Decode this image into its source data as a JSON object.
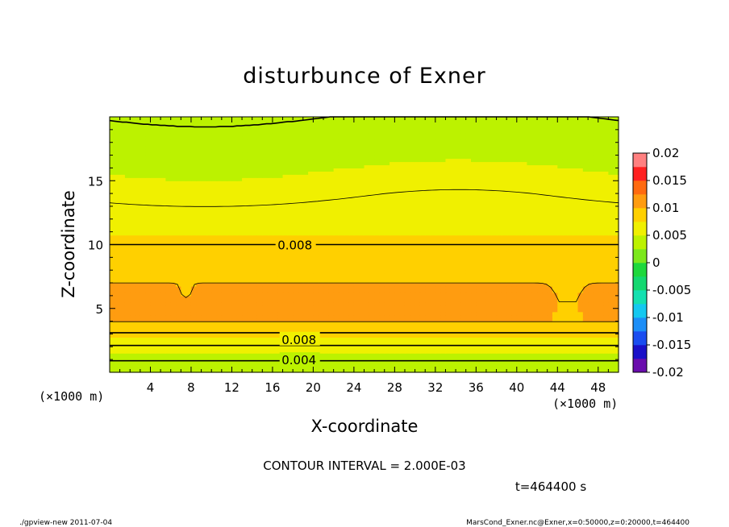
{
  "chart_data": {
    "type": "heatmap",
    "title": "disturbunce of Exner",
    "xlabel": "X-coordinate",
    "ylabel": "Z-coordinate",
    "x_unit": "(×1000 m)",
    "y_unit": "(×1000 m)",
    "xlim": [
      0,
      50
    ],
    "ylim": [
      0,
      20
    ],
    "x_ticks": [
      4,
      8,
      12,
      16,
      20,
      24,
      28,
      32,
      36,
      40,
      44,
      48
    ],
    "y_ticks": [
      5,
      10,
      15
    ],
    "colorbar": {
      "min": -0.02,
      "max": 0.02,
      "step": 0.0025,
      "tick_labels": [
        "0.02",
        "0.015",
        "0.01",
        "0.005",
        "0",
        "-0.005",
        "-0.01",
        "-0.015",
        "-0.02"
      ],
      "colors": [
        "#6a0dad",
        "#1a10c8",
        "#1a4df0",
        "#1c8ef7",
        "#14c8f0",
        "#14e0b0",
        "#14d870",
        "#1ed83c",
        "#7ce81c",
        "#bcf200",
        "#f0f000",
        "#ffd000",
        "#ff9c10",
        "#ff6a10",
        "#ff2020",
        "#ff8080"
      ]
    },
    "contour_interval": "2.000E-03",
    "contour_labels": [
      "0.008",
      "0.008",
      "0.004"
    ],
    "value_profile": {
      "z": [
        0,
        0.6,
        1.2,
        1.8,
        2.4,
        3.0,
        3.6,
        4.0,
        5.5,
        7.0,
        7.6,
        8.5,
        9.4,
        10.0,
        10.6,
        11.5,
        12.5,
        13.5,
        14.5,
        15.5,
        16.5,
        17.5,
        18.2,
        19.0,
        20.0
      ],
      "value": [
        0.0025,
        0.0035,
        0.0045,
        0.0055,
        0.0065,
        0.0078,
        0.009,
        0.0101,
        0.0105,
        0.01,
        0.0093,
        0.0088,
        0.0083,
        0.008,
        0.0076,
        0.0071,
        0.0066,
        0.006,
        0.0055,
        0.0051,
        0.0048,
        0.0046,
        0.0045,
        0.0043,
        0.004
      ]
    },
    "time": "t=464400 s"
  },
  "footer": {
    "left": "./gpview-new   2011-07-04",
    "right": "MarsCond_Exner.nc@Exner,x=0:50000,z=0:20000,t=464400"
  }
}
